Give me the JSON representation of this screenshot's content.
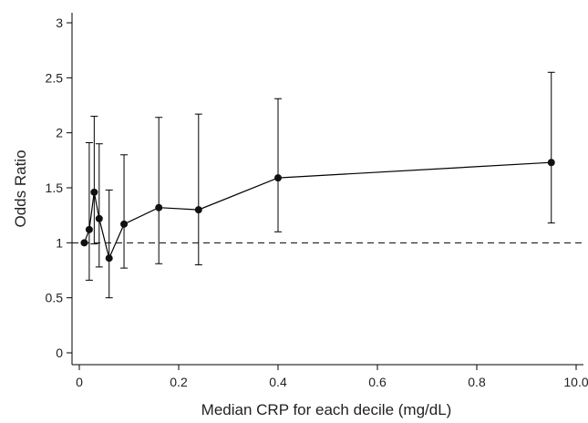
{
  "chart_data": {
    "type": "line",
    "title": "",
    "xlabel": "Median CRP for each decile (mg/dL)",
    "ylabel": "Odds Ratio",
    "x_tick_labels": [
      "0",
      "0.2",
      "0.4",
      "0.6",
      "0.8",
      "10.0"
    ],
    "y_tick_labels": [
      "0",
      "0.5",
      "1",
      "1.5",
      "2",
      "2.5",
      "3"
    ],
    "ylim": [
      0,
      3
    ],
    "reference_line": {
      "y": 1,
      "style": "dashed"
    },
    "grid": false,
    "series": [
      {
        "points": [
          {
            "x": 0.01,
            "y": 1.0,
            "lower": 1.0,
            "upper": 1.0
          },
          {
            "x": 0.02,
            "y": 1.12,
            "lower": 0.66,
            "upper": 1.91
          },
          {
            "x": 0.03,
            "y": 1.46,
            "lower": 0.99,
            "upper": 2.15
          },
          {
            "x": 0.04,
            "y": 1.22,
            "lower": 0.78,
            "upper": 1.9
          },
          {
            "x": 0.06,
            "y": 0.86,
            "lower": 0.5,
            "upper": 1.48
          },
          {
            "x": 0.09,
            "y": 1.17,
            "lower": 0.77,
            "upper": 1.8
          },
          {
            "x": 0.16,
            "y": 1.32,
            "lower": 0.81,
            "upper": 2.14
          },
          {
            "x": 0.24,
            "y": 1.3,
            "lower": 0.8,
            "upper": 2.17
          },
          {
            "x": 0.4,
            "y": 1.59,
            "lower": 1.1,
            "upper": 2.31
          },
          {
            "x": 0.95,
            "y": 1.73,
            "lower": 1.18,
            "upper": 2.55
          }
        ]
      }
    ]
  }
}
